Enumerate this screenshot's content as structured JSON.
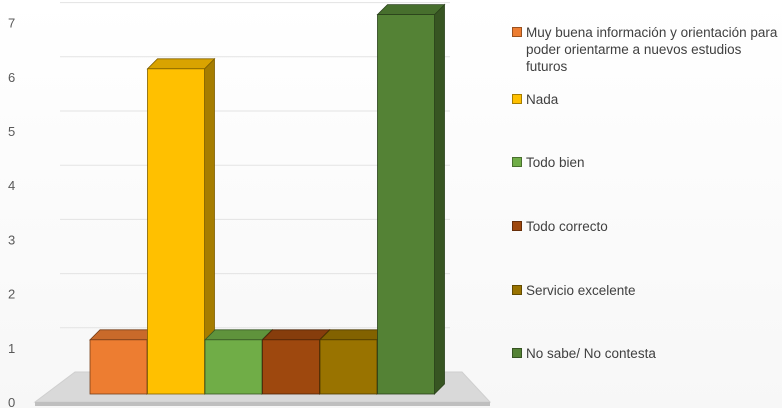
{
  "chart_data": {
    "type": "bar",
    "title": "",
    "xlabel": "",
    "ylabel": "",
    "ylim": [
      0,
      7
    ],
    "yticks": [
      "0",
      "1",
      "2",
      "3",
      "4",
      "5",
      "6",
      "7"
    ],
    "grid": true,
    "legend_position": "right",
    "three_d": true,
    "series": [
      {
        "name": "Muy buena información y orientación para poder orientarme a nuevos estudios futuros",
        "value": 1,
        "color": "#ED7D31"
      },
      {
        "name": "Nada",
        "value": 6,
        "color": "#FFC000"
      },
      {
        "name": "Todo bien",
        "value": 1,
        "color": "#70AD47"
      },
      {
        "name": "Todo correcto",
        "value": 1,
        "color": "#9E480E"
      },
      {
        "name": "Servicio excelente",
        "value": 1,
        "color": "#997300"
      },
      {
        "name": "No sabe/ No contesta",
        "value": 7,
        "color": "#548235"
      }
    ]
  }
}
